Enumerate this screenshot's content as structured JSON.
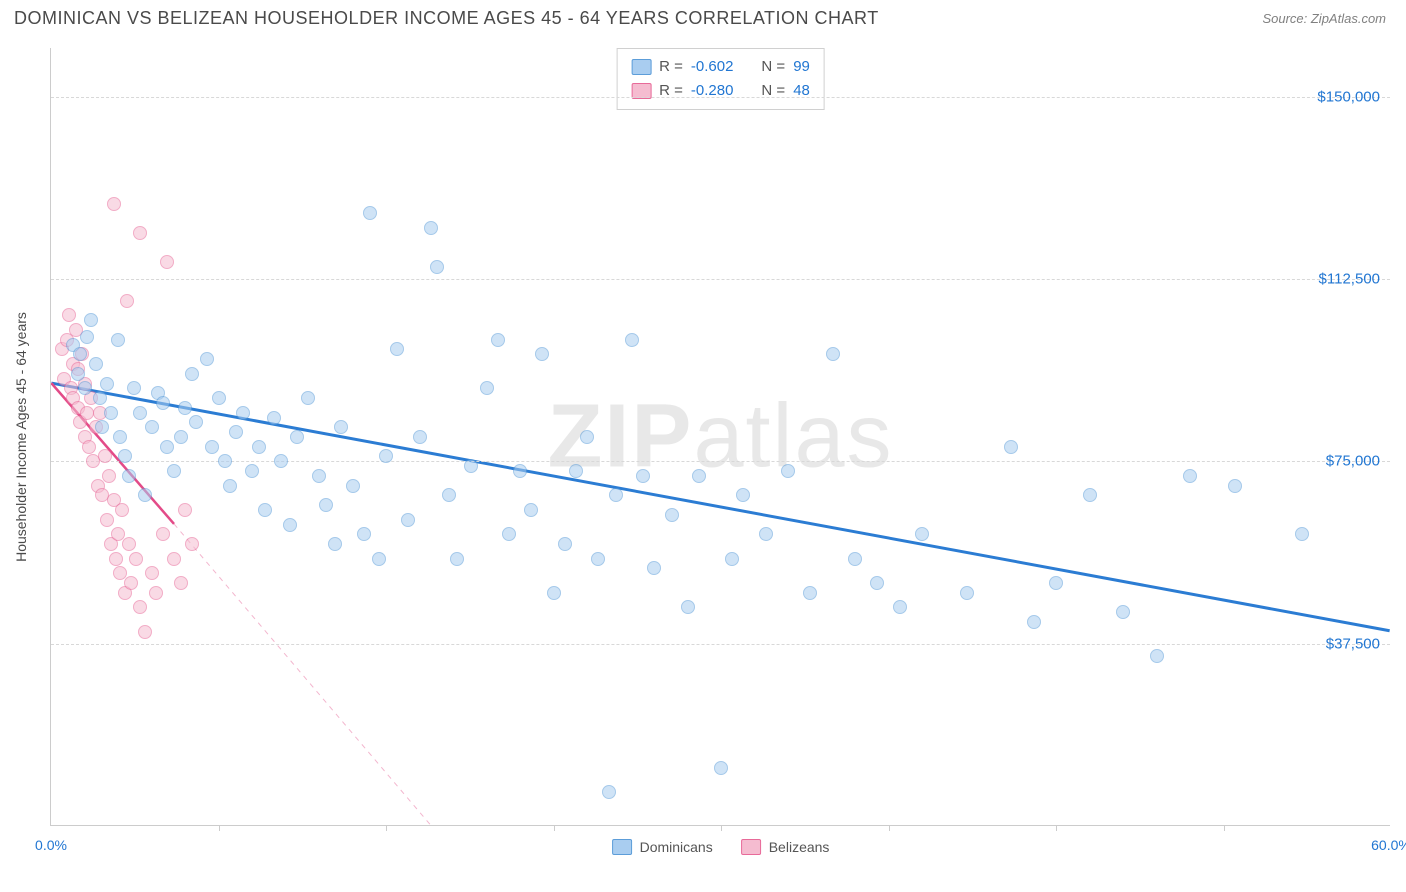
{
  "header": {
    "title": "DOMINICAN VS BELIZEAN HOUSEHOLDER INCOME AGES 45 - 64 YEARS CORRELATION CHART",
    "source": "Source: ZipAtlas.com"
  },
  "watermark": {
    "prefix": "ZIP",
    "suffix": "atlas"
  },
  "chart": {
    "type": "scatter",
    "background_color": "#ffffff",
    "grid_color": "#d8d8d8",
    "axis_color": "#cccccc",
    "ylabel": "Householder Income Ages 45 - 64 years",
    "ylabel_color": "#4a4a4a",
    "ylabel_fontsize": 14,
    "xlim": [
      0,
      60
    ],
    "ylim": [
      0,
      160000
    ],
    "yticks": [
      {
        "value": 37500,
        "label": "$37,500"
      },
      {
        "value": 75000,
        "label": "$75,000"
      },
      {
        "value": 112500,
        "label": "$112,500"
      },
      {
        "value": 150000,
        "label": "$150,000"
      }
    ],
    "ytick_color": "#2176d2",
    "xticks": [
      7.5,
      15,
      22.5,
      30,
      37.5,
      45,
      52.5
    ],
    "xticks_labeled": [
      {
        "value": 0,
        "label": "0.0%"
      },
      {
        "value": 60,
        "label": "60.0%"
      }
    ],
    "xtick_color": "#2176d2",
    "marker_radius": 7,
    "marker_border_width": 1.5,
    "series": [
      {
        "name": "Dominicans",
        "fill_color": "#a9cdf0",
        "stroke_color": "#5c9dd9",
        "fill_opacity": 0.55,
        "r": -0.602,
        "n": 99,
        "trend": {
          "x1": 0,
          "y1": 91000,
          "x2": 60,
          "y2": 40000,
          "color": "#2b7cd3",
          "width": 3,
          "dash": "none"
        },
        "points": [
          [
            1.0,
            99000
          ],
          [
            1.2,
            93000
          ],
          [
            1.3,
            97000
          ],
          [
            1.5,
            90000
          ],
          [
            1.6,
            100500
          ],
          [
            1.8,
            104000
          ],
          [
            2.0,
            95000
          ],
          [
            2.2,
            88000
          ],
          [
            2.3,
            82000
          ],
          [
            2.5,
            91000
          ],
          [
            2.7,
            85000
          ],
          [
            3.0,
            100000
          ],
          [
            3.1,
            80000
          ],
          [
            3.3,
            76000
          ],
          [
            3.5,
            72000
          ],
          [
            3.7,
            90000
          ],
          [
            4.0,
            85000
          ],
          [
            4.2,
            68000
          ],
          [
            4.5,
            82000
          ],
          [
            4.8,
            89000
          ],
          [
            5.0,
            87000
          ],
          [
            5.2,
            78000
          ],
          [
            5.5,
            73000
          ],
          [
            5.8,
            80000
          ],
          [
            6.0,
            86000
          ],
          [
            6.3,
            93000
          ],
          [
            6.5,
            83000
          ],
          [
            7.0,
            96000
          ],
          [
            7.2,
            78000
          ],
          [
            7.5,
            88000
          ],
          [
            7.8,
            75000
          ],
          [
            8.0,
            70000
          ],
          [
            8.3,
            81000
          ],
          [
            8.6,
            85000
          ],
          [
            9.0,
            73000
          ],
          [
            9.3,
            78000
          ],
          [
            9.6,
            65000
          ],
          [
            10.0,
            84000
          ],
          [
            10.3,
            75000
          ],
          [
            10.7,
            62000
          ],
          [
            11.0,
            80000
          ],
          [
            11.5,
            88000
          ],
          [
            12.0,
            72000
          ],
          [
            12.3,
            66000
          ],
          [
            12.7,
            58000
          ],
          [
            13.0,
            82000
          ],
          [
            13.5,
            70000
          ],
          [
            14.0,
            60000
          ],
          [
            14.3,
            126000
          ],
          [
            14.7,
            55000
          ],
          [
            15.0,
            76000
          ],
          [
            15.5,
            98000
          ],
          [
            16.0,
            63000
          ],
          [
            16.5,
            80000
          ],
          [
            17.0,
            123000
          ],
          [
            17.3,
            115000
          ],
          [
            17.8,
            68000
          ],
          [
            18.2,
            55000
          ],
          [
            18.8,
            74000
          ],
          [
            19.5,
            90000
          ],
          [
            20.0,
            100000
          ],
          [
            20.5,
            60000
          ],
          [
            21.0,
            73000
          ],
          [
            21.5,
            65000
          ],
          [
            22.0,
            97000
          ],
          [
            22.5,
            48000
          ],
          [
            23.0,
            58000
          ],
          [
            23.5,
            73000
          ],
          [
            24.0,
            80000
          ],
          [
            24.5,
            55000
          ],
          [
            25.0,
            7000
          ],
          [
            25.3,
            68000
          ],
          [
            26.0,
            100000
          ],
          [
            26.5,
            72000
          ],
          [
            27.0,
            53000
          ],
          [
            27.8,
            64000
          ],
          [
            28.5,
            45000
          ],
          [
            29.0,
            72000
          ],
          [
            30.0,
            12000
          ],
          [
            30.5,
            55000
          ],
          [
            31.0,
            68000
          ],
          [
            32.0,
            60000
          ],
          [
            33.0,
            73000
          ],
          [
            34.0,
            48000
          ],
          [
            35.0,
            97000
          ],
          [
            36.0,
            55000
          ],
          [
            37.0,
            50000
          ],
          [
            38.0,
            45000
          ],
          [
            39.0,
            60000
          ],
          [
            41.0,
            48000
          ],
          [
            43.0,
            78000
          ],
          [
            44.0,
            42000
          ],
          [
            45.0,
            50000
          ],
          [
            46.5,
            68000
          ],
          [
            48.0,
            44000
          ],
          [
            49.5,
            35000
          ],
          [
            51.0,
            72000
          ],
          [
            53.0,
            70000
          ],
          [
            56.0,
            60000
          ]
        ]
      },
      {
        "name": "Belizeans",
        "fill_color": "#f5bcd0",
        "stroke_color": "#e86a99",
        "fill_opacity": 0.55,
        "r": -0.28,
        "n": 48,
        "trend": {
          "x1": 0,
          "y1": 91000,
          "x2": 5.5,
          "y2": 62000,
          "color": "#e34b88",
          "width": 2.5,
          "dash": "none"
        },
        "trend_ext": {
          "x1": 5.5,
          "y1": 62000,
          "x2": 17,
          "y2": 0,
          "color": "#f3b6ce",
          "width": 1,
          "dash": "5,5"
        },
        "points": [
          [
            0.5,
            98000
          ],
          [
            0.6,
            92000
          ],
          [
            0.7,
            100000
          ],
          [
            0.8,
            105000
          ],
          [
            0.9,
            90000
          ],
          [
            1.0,
            95000
          ],
          [
            1.0,
            88000
          ],
          [
            1.1,
            102000
          ],
          [
            1.2,
            86000
          ],
          [
            1.2,
            94000
          ],
          [
            1.3,
            83000
          ],
          [
            1.4,
            97000
          ],
          [
            1.5,
            80000
          ],
          [
            1.5,
            91000
          ],
          [
            1.6,
            85000
          ],
          [
            1.7,
            78000
          ],
          [
            1.8,
            88000
          ],
          [
            1.9,
            75000
          ],
          [
            2.0,
            82000
          ],
          [
            2.1,
            70000
          ],
          [
            2.2,
            85000
          ],
          [
            2.3,
            68000
          ],
          [
            2.4,
            76000
          ],
          [
            2.5,
            63000
          ],
          [
            2.6,
            72000
          ],
          [
            2.7,
            58000
          ],
          [
            2.8,
            67000
          ],
          [
            2.8,
            128000
          ],
          [
            2.9,
            55000
          ],
          [
            3.0,
            60000
          ],
          [
            3.1,
            52000
          ],
          [
            3.2,
            65000
          ],
          [
            3.3,
            48000
          ],
          [
            3.5,
            58000
          ],
          [
            3.6,
            50000
          ],
          [
            3.8,
            55000
          ],
          [
            4.0,
            45000
          ],
          [
            4.0,
            122000
          ],
          [
            4.2,
            40000
          ],
          [
            4.5,
            52000
          ],
          [
            4.7,
            48000
          ],
          [
            5.0,
            60000
          ],
          [
            5.2,
            116000
          ],
          [
            5.5,
            55000
          ],
          [
            5.8,
            50000
          ],
          [
            6.0,
            65000
          ],
          [
            6.3,
            58000
          ],
          [
            3.4,
            108000
          ]
        ]
      }
    ]
  },
  "stats_legend": {
    "r_label": "R =",
    "n_label": "N ="
  },
  "bottom_legend": {
    "items": [
      "Dominicans",
      "Belizeans"
    ]
  }
}
